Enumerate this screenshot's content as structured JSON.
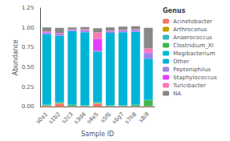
{
  "chart_data": {
    "type": "bar",
    "stacked": true,
    "xlabel": "Sample ID",
    "ylabel": "Abundance",
    "legend_title": "Genus",
    "categories": [
      "s0a1",
      "s1b2",
      "s2c3",
      "s3d4",
      "s4e5",
      "s5f6",
      "s6g7",
      "s7h8",
      "s8i9"
    ],
    "series": [
      {
        "name": "Acinetobacter",
        "color": "#f4756a",
        "values": [
          0.01,
          0.04,
          0.005,
          0.005,
          0.04,
          0.005,
          0.005,
          0.005,
          0.005
        ]
      },
      {
        "name": "Arthroconus",
        "color": "#c4a000",
        "values": [
          0.005,
          0.005,
          0.005,
          0.005,
          0.005,
          0.005,
          0.005,
          0.005,
          0.005
        ]
      },
      {
        "name": "Anaerococcus",
        "color": "#34b6c6",
        "values": [
          0.005,
          0.005,
          0.005,
          0.005,
          0.005,
          0.005,
          0.005,
          0.005,
          0.005
        ]
      },
      {
        "name": "Clostridium_XI",
        "color": "#3fb64b",
        "values": [
          0.005,
          0.005,
          0.01,
          0.005,
          0.005,
          0.005,
          0.005,
          0.01,
          0.07
        ]
      },
      {
        "name": "Megibacterium",
        "color": "#00bcd4",
        "values": [
          0.005,
          0.005,
          0.005,
          0.005,
          0.005,
          0.005,
          0.005,
          0.005,
          0.005
        ]
      },
      {
        "name": "Other",
        "color": "#00b4d8",
        "values": [
          0.89,
          0.84,
          0.93,
          0.92,
          0.64,
          0.91,
          0.92,
          0.92,
          0.52
        ]
      },
      {
        "name": "Peptoniphilus",
        "color": "#9b86e8",
        "values": [
          0.02,
          0.02,
          0.01,
          0.02,
          0.01,
          0.02,
          0.02,
          0.02,
          0.07
        ]
      },
      {
        "name": "Staphylococcus",
        "color": "#e040fb",
        "values": [
          0.005,
          0.005,
          0.005,
          0.005,
          0.15,
          0.005,
          0.005,
          0.005,
          0.01
        ]
      },
      {
        "name": "Turicibacter",
        "color": "#f979b7",
        "values": [
          0.01,
          0.01,
          0.005,
          0.01,
          0.08,
          0.005,
          0.005,
          0.005,
          0.05
        ]
      },
      {
        "name": "NA",
        "color": "#888888",
        "values": [
          0.05,
          0.065,
          0.025,
          0.03,
          0.055,
          0.04,
          0.04,
          0.04,
          0.26
        ]
      }
    ],
    "ylim": [
      0.0,
      1.25
    ],
    "yticks": [
      {
        "value": 0,
        "label": "0.00"
      },
      {
        "value": 0.25,
        "label": "0.25"
      },
      {
        "value": 0.5,
        "label": "0.50"
      },
      {
        "value": 0.75,
        "label": "0.75"
      },
      {
        "value": 1.0,
        "label": "1.00"
      },
      {
        "value": 1.25,
        "label": "1.25"
      }
    ],
    "grid": false,
    "legend": "right"
  }
}
